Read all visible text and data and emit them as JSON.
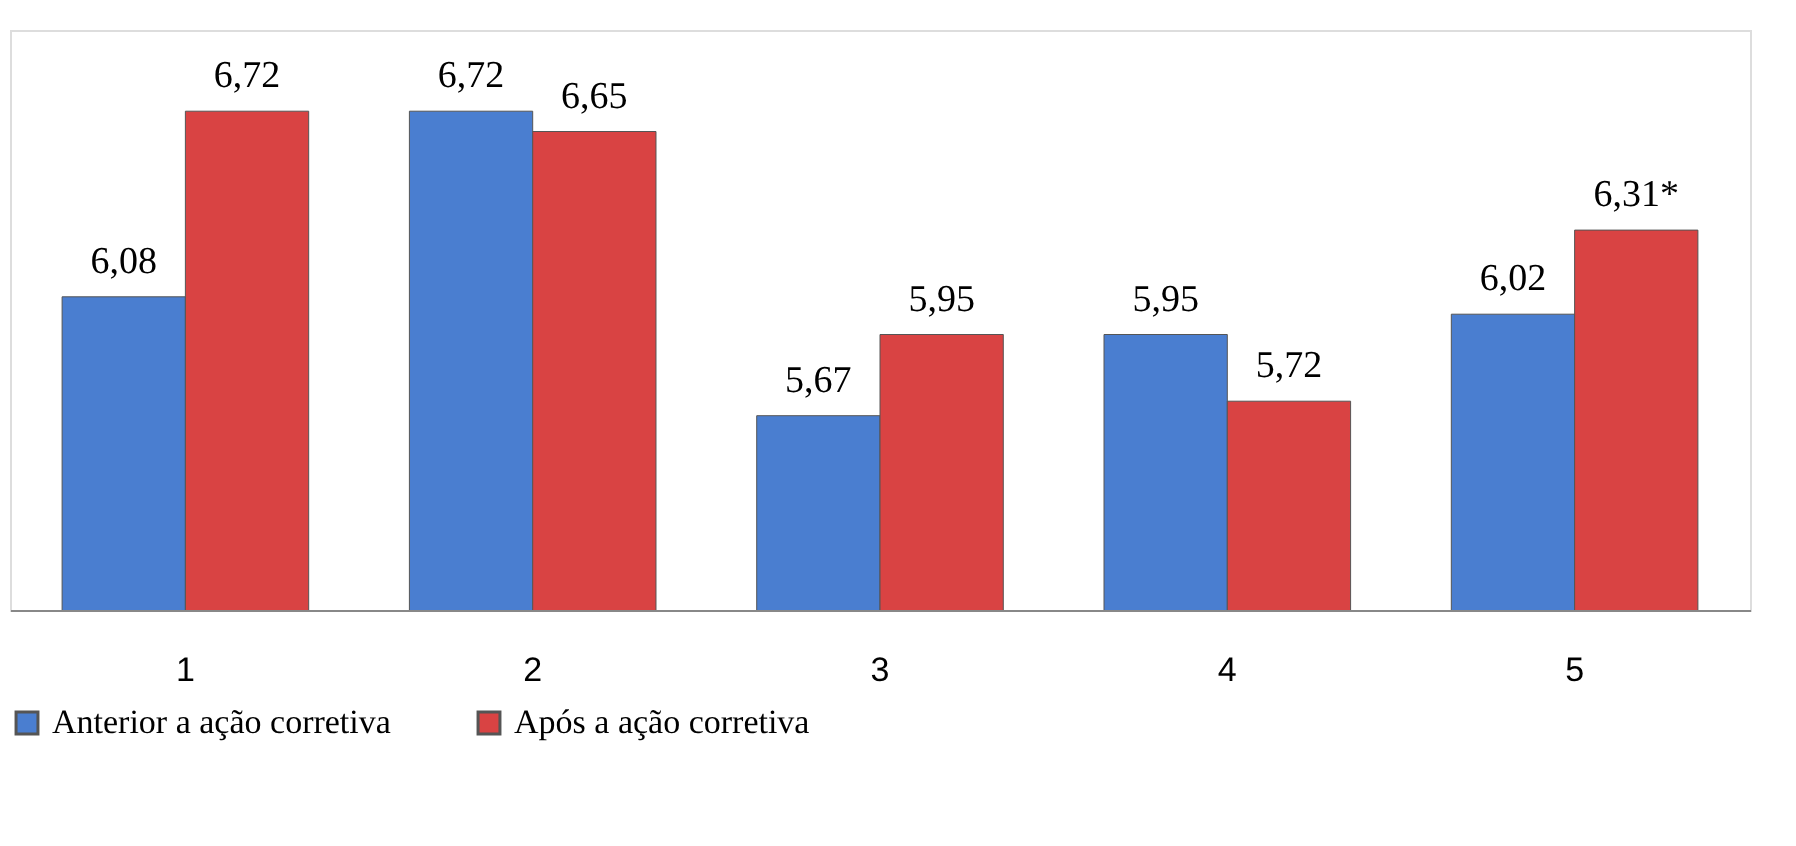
{
  "chart_data": {
    "type": "bar",
    "categories": [
      "1",
      "2",
      "3",
      "4",
      "5"
    ],
    "series": [
      {
        "name": "Anterior a ação corretiva",
        "color": "#4a7ed0",
        "values": [
          6.08,
          6.72,
          5.67,
          5.95,
          6.02
        ],
        "value_labels": [
          "6,08",
          "6,72",
          "5,67",
          "5,95",
          "6,02"
        ]
      },
      {
        "name": "Após a ação corretiva",
        "color": "#d94343",
        "values": [
          6.72,
          6.65,
          5.95,
          5.72,
          6.31
        ],
        "value_labels": [
          "6,72",
          "6,65",
          "5,95",
          "5,72",
          "6,31*"
        ]
      }
    ],
    "ylim": [
      5,
      7
    ],
    "tick_labels": "x",
    "grid": false,
    "legend": "bottom"
  }
}
